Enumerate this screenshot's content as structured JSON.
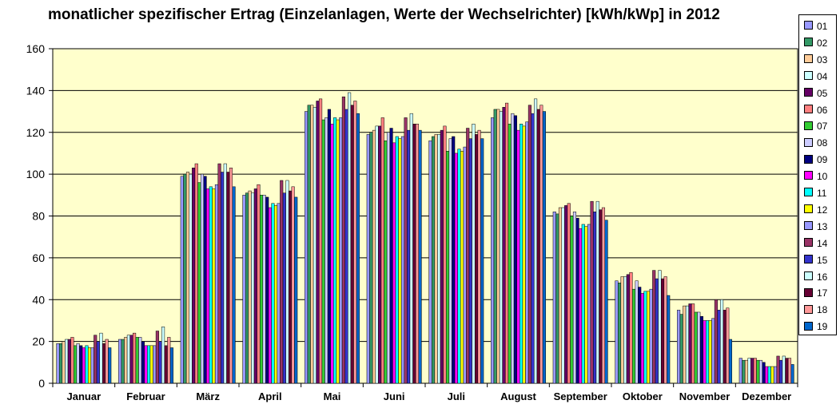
{
  "chart_data": {
    "type": "bar",
    "title": "monatlicher spezifischer Ertrag (Einzelanlagen, Werte der Wechselrichter) [kWh/kWp] in 2012",
    "categories": [
      "Januar",
      "Februar",
      "März",
      "April",
      "Mai",
      "Juni",
      "Juli",
      "August",
      "September",
      "Oktober",
      "November",
      "Dezember"
    ],
    "ylim": [
      0,
      160
    ],
    "yticks": [
      0,
      20,
      40,
      60,
      80,
      100,
      120,
      140,
      160
    ],
    "grid": true,
    "legend_position": "right",
    "series": [
      {
        "name": "01",
        "color": "#9999ff",
        "values": [
          19,
          21,
          99,
          90,
          130,
          119,
          116,
          127,
          82,
          49,
          35,
          12
        ]
      },
      {
        "name": "02",
        "color": "#339966",
        "values": [
          19,
          21,
          100,
          91,
          133,
          120,
          118,
          131,
          81,
          48,
          33,
          11
        ]
      },
      {
        "name": "03",
        "color": "#ffcc99",
        "values": [
          20,
          22,
          101,
          92,
          133,
          121,
          119,
          131,
          84,
          51,
          37,
          11
        ]
      },
      {
        "name": "04",
        "color": "#ccffff",
        "values": [
          21,
          23,
          100,
          91,
          132,
          123,
          119,
          130,
          84,
          51,
          37,
          12
        ]
      },
      {
        "name": "05",
        "color": "#660066",
        "values": [
          21,
          23,
          103,
          93,
          135,
          123,
          121,
          132,
          85,
          52,
          38,
          12
        ]
      },
      {
        "name": "06",
        "color": "#ff8080",
        "values": [
          22,
          24,
          105,
          95,
          136,
          127,
          123,
          134,
          86,
          53,
          38,
          12
        ]
      },
      {
        "name": "07",
        "color": "#33cc33",
        "values": [
          18,
          22,
          96,
          90,
          126,
          116,
          111,
          124,
          80,
          45,
          34,
          11
        ]
      },
      {
        "name": "08",
        "color": "#ccccff",
        "values": [
          19,
          22,
          100,
          90,
          127,
          120,
          117,
          129,
          82,
          49,
          34,
          11
        ]
      },
      {
        "name": "09",
        "color": "#000080",
        "values": [
          18,
          20,
          99,
          89,
          131,
          122,
          118,
          128,
          79,
          46,
          32,
          10
        ]
      },
      {
        "name": "10",
        "color": "#ff00ff",
        "values": [
          17,
          18,
          93,
          84,
          124,
          115,
          110,
          121,
          74,
          43,
          30,
          8
        ]
      },
      {
        "name": "11",
        "color": "#00ffff",
        "values": [
          18,
          18,
          94,
          86,
          127,
          118,
          112,
          124,
          76,
          44,
          30,
          8
        ]
      },
      {
        "name": "12",
        "color": "#ffff00",
        "values": [
          17,
          18,
          93,
          85,
          126,
          117,
          111,
          123,
          75,
          44,
          30,
          8
        ]
      },
      {
        "name": "13",
        "color": "#9999ff",
        "values": [
          17,
          18,
          95,
          86,
          127,
          118,
          113,
          125,
          76,
          45,
          31,
          8
        ]
      },
      {
        "name": "14",
        "color": "#993366",
        "values": [
          23,
          25,
          105,
          97,
          137,
          127,
          122,
          133,
          87,
          54,
          40,
          13
        ]
      },
      {
        "name": "15",
        "color": "#3333cc",
        "values": [
          20,
          20,
          101,
          91,
          131,
          121,
          117,
          129,
          82,
          50,
          35,
          11
        ]
      },
      {
        "name": "16",
        "color": "#ccffff",
        "values": [
          24,
          27,
          105,
          97,
          139,
          129,
          124,
          136,
          87,
          54,
          40,
          13
        ]
      },
      {
        "name": "17",
        "color": "#660033",
        "values": [
          19,
          18,
          101,
          92,
          133,
          124,
          119,
          131,
          83,
          50,
          35,
          12
        ]
      },
      {
        "name": "18",
        "color": "#ff9999",
        "values": [
          21,
          22,
          103,
          94,
          135,
          124,
          121,
          133,
          84,
          51,
          36,
          12
        ]
      },
      {
        "name": "19",
        "color": "#0066cc",
        "values": [
          17,
          17,
          94,
          89,
          129,
          121,
          117,
          130,
          78,
          42,
          21,
          9
        ]
      }
    ],
    "plot_background": "#ffffcc",
    "page_background": "#ffffff"
  }
}
